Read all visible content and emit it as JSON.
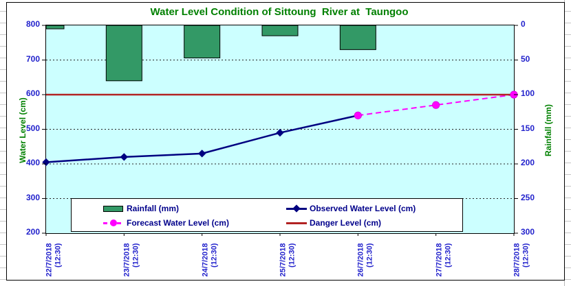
{
  "chart_data": {
    "type": "combo",
    "title": "Water Level Condition of Sittoung  River at  Taungoo",
    "title_color": "#008000",
    "plot_background": "#CCFFFF",
    "grid": "dashed-horizontal",
    "legend_position": "bottom-inside",
    "categories": [
      {
        "date": "22/7/2018",
        "time": "(12:30)"
      },
      {
        "date": "23/7/2018",
        "time": "(12:30)"
      },
      {
        "date": "24/7/2018",
        "time": "(12:30)"
      },
      {
        "date": "25/7/2018",
        "time": "(12:30)"
      },
      {
        "date": "26/7/2018",
        "time": "(12:30)"
      },
      {
        "date": "27/7/2018",
        "time": "(12:30)"
      },
      {
        "date": "28/7/2018",
        "time": "(12:30)"
      }
    ],
    "series": [
      {
        "name": "Rainfall (mm)",
        "type": "bar",
        "axis": "right",
        "color": "#339966",
        "values": [
          5,
          80,
          47,
          15,
          35,
          null,
          null
        ]
      },
      {
        "name": "Observed Water Level (cm)",
        "type": "line",
        "axis": "left",
        "color": "#000080",
        "marker": "diamond",
        "values": [
          405,
          420,
          430,
          490,
          540,
          null,
          null
        ]
      },
      {
        "name": "Forecast Water Level (cm)",
        "type": "dashed-line",
        "axis": "left",
        "color": "#FF00FF",
        "marker": "circle",
        "values": [
          null,
          null,
          null,
          null,
          540,
          570,
          600
        ]
      },
      {
        "name": "Danger Level (cm)",
        "type": "horizontal-line",
        "axis": "left",
        "color": "#B22222",
        "value": 600
      }
    ],
    "left_axis": {
      "title": "Water Level (cm)",
      "title_color": "#008000",
      "min": 200,
      "max": 800,
      "step": 100,
      "tick_labels": [
        "800",
        "700",
        "600",
        "500",
        "400",
        "300",
        "200"
      ],
      "label_color": "#2222CC"
    },
    "right_axis": {
      "title": "Rainfall (mm)",
      "title_color": "#008000",
      "min": 0,
      "max": 300,
      "step": 50,
      "inverted": true,
      "tick_labels": [
        "0",
        "50",
        "100",
        "150",
        "200",
        "250",
        "300"
      ],
      "label_color": "#2222CC"
    },
    "legend_text_color": "#00008B"
  }
}
